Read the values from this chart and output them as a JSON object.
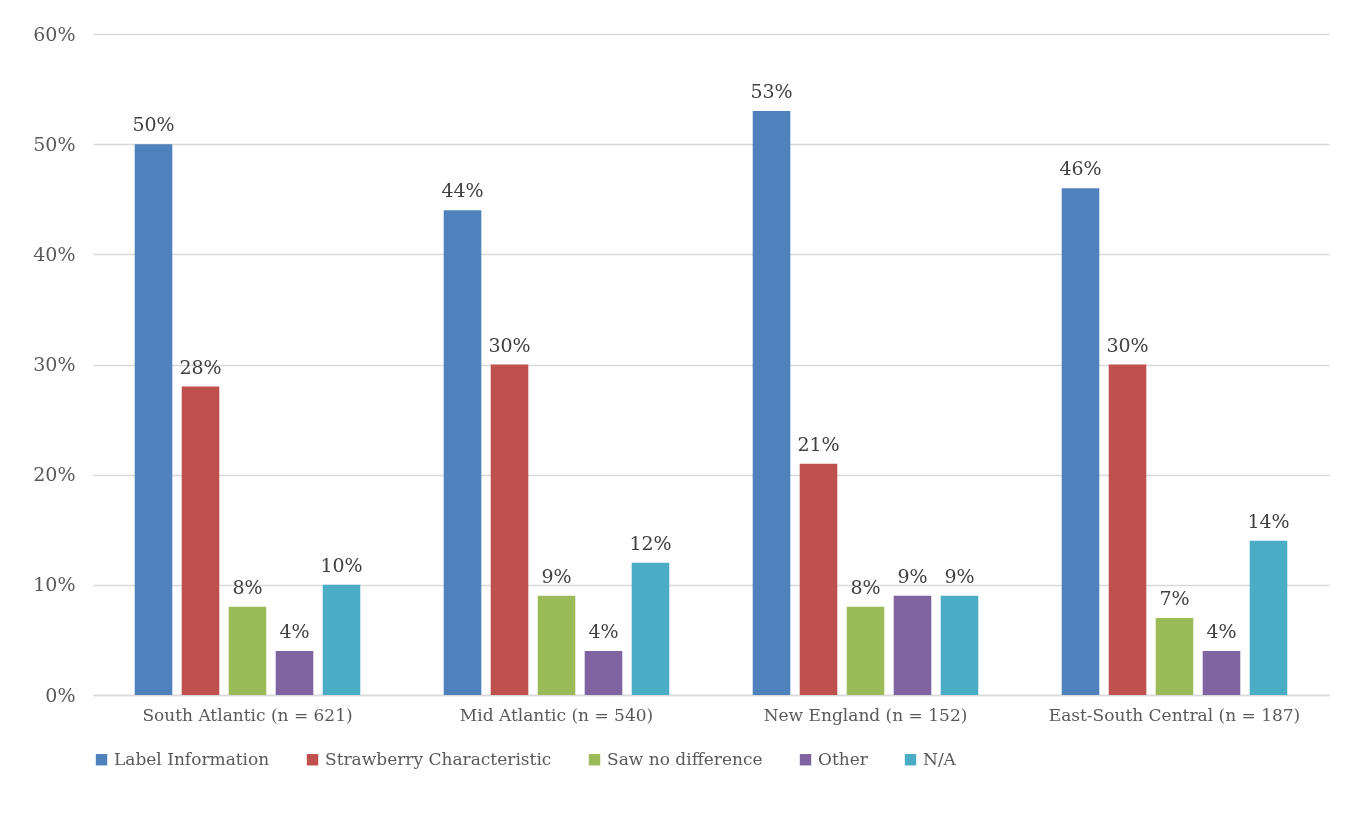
{
  "chart_data": {
    "type": "bar",
    "categories": [
      "South Atlantic (n = 621)",
      "Mid Atlantic (n = 540)",
      "New England (n = 152)",
      "East-South Central (n = 187)"
    ],
    "series": [
      {
        "name": "Label Information",
        "color": "#4f81bd",
        "values": [
          50,
          44,
          53,
          46
        ],
        "value_labels": [
          "50%",
          "44%",
          "53%",
          "46%"
        ]
      },
      {
        "name": "Strawberry Characteristic",
        "color": "#c0504d",
        "values": [
          28,
          30,
          21,
          30
        ],
        "value_labels": [
          "28%",
          "30%",
          "21%",
          "30%"
        ]
      },
      {
        "name": "Saw no difference",
        "color": "#9bbb59",
        "values": [
          8,
          9,
          8,
          7
        ],
        "value_labels": [
          "8%",
          "9%",
          "8%",
          "7%"
        ]
      },
      {
        "name": "Other",
        "color": "#8064a2",
        "values": [
          4,
          4,
          9,
          4
        ],
        "value_labels": [
          "4%",
          "4%",
          "9%",
          "4%"
        ]
      },
      {
        "name": "N/A",
        "color": "#4bacc6",
        "values": [
          10,
          12,
          9,
          14
        ],
        "value_labels": [
          "10%",
          "12%",
          "9%",
          "14%"
        ]
      }
    ],
    "ylim": [
      0,
      60
    ],
    "yticks": [
      {
        "value": 0,
        "label": "0%"
      },
      {
        "value": 10,
        "label": "10%"
      },
      {
        "value": 20,
        "label": "20%"
      },
      {
        "value": 30,
        "label": "30%"
      },
      {
        "value": 40,
        "label": "40%"
      },
      {
        "value": 50,
        "label": "50%"
      },
      {
        "value": 60,
        "label": "60%"
      }
    ],
    "grid": "y",
    "legend": "bottom"
  }
}
